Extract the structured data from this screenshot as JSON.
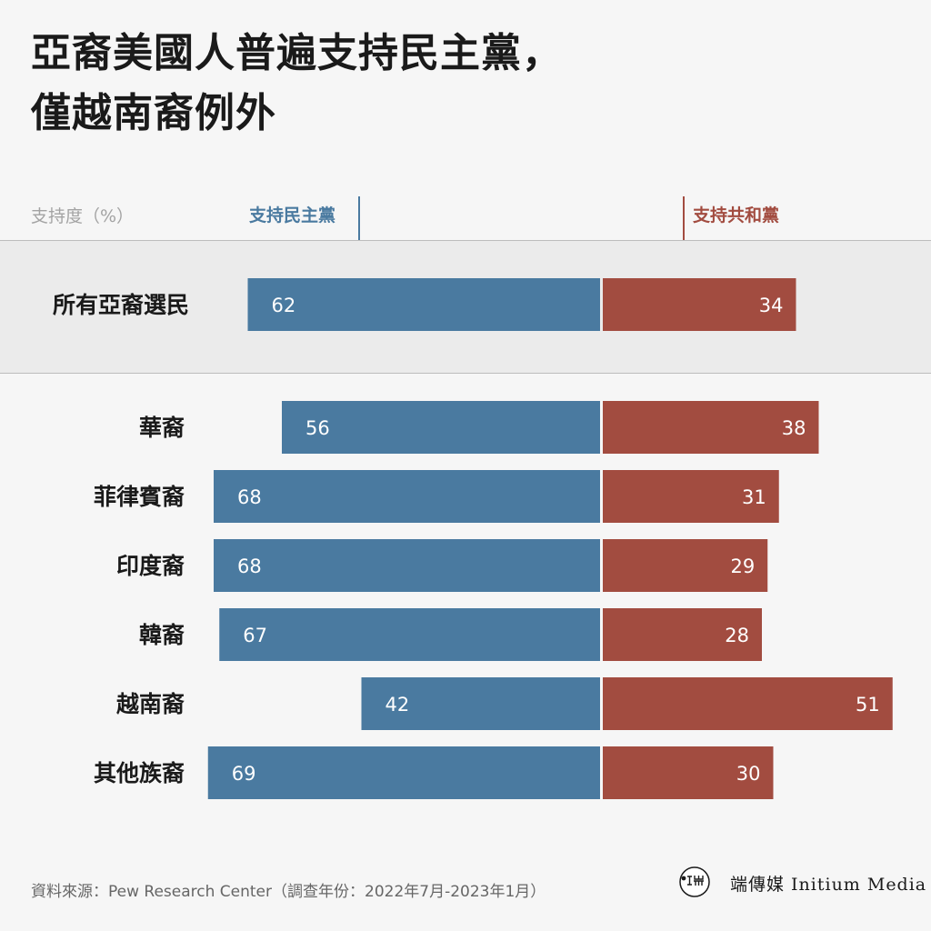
{
  "title_lines": [
    "亞裔美國人普遍支持民主黨，",
    "僅越南裔例外"
  ],
  "legend": {
    "unit_label": "支持度（%）",
    "dem_label": "支持民主黨",
    "rep_label": "支持共和黨"
  },
  "colors": {
    "dem": "#4a7aa0",
    "rep": "#a24c40",
    "highlight_bg": "#ebebeb"
  },
  "chart_data": {
    "type": "bar",
    "orientation": "horizontal-diverging",
    "categories": [
      "所有亞裔選民",
      "華裔",
      "菲律賓裔",
      "印度裔",
      "韓裔",
      "越南裔",
      "其他族裔"
    ],
    "series": [
      {
        "name": "支持民主黨",
        "values": [
          62,
          56,
          68,
          68,
          67,
          42,
          69
        ]
      },
      {
        "name": "支持共和黨",
        "values": [
          34,
          38,
          31,
          29,
          28,
          51,
          30
        ]
      }
    ],
    "highlighted_category": "所有亞裔選民",
    "ylabel": "支持度（%）"
  },
  "footer": {
    "source": "資料來源：Pew Research Center（調查年份：2022年7月-2023年1月）"
  },
  "logo": {
    "icon": "initium-logo-icon",
    "text": "端傳媒 Initium Media"
  }
}
